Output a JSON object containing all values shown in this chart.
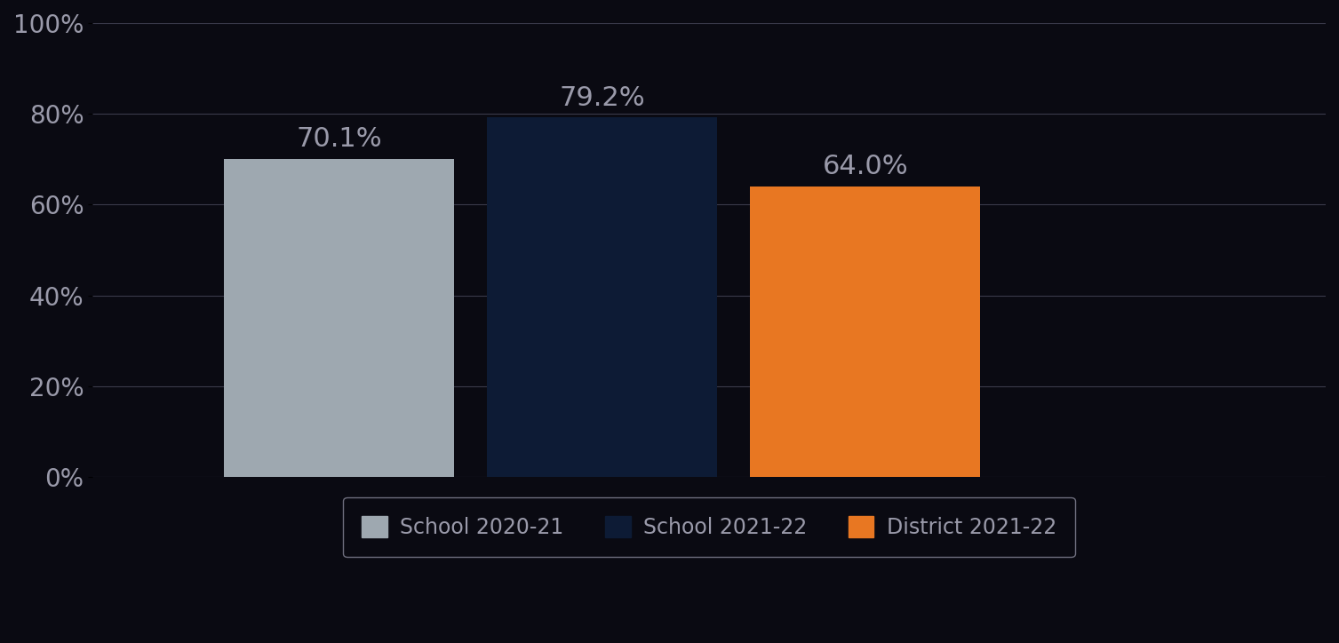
{
  "categories": [
    "School 2020-21",
    "School 2021-22",
    "District 2021-22"
  ],
  "values": [
    70.1,
    79.2,
    64.0
  ],
  "bar_colors": [
    "#9ea8b0",
    "#0d1b35",
    "#e87722"
  ],
  "ylim": [
    0,
    100
  ],
  "yticks": [
    0,
    20,
    40,
    60,
    80,
    100
  ],
  "ytick_labels": [
    "0%",
    "20%",
    "40%",
    "60%",
    "80%",
    "100%"
  ],
  "background_color": "#0a0a12",
  "grid_color": "#3a3a4a",
  "text_color": "#9a9aaa",
  "bar_label_fontsize": 22,
  "tick_fontsize": 20,
  "legend_fontsize": 17,
  "bar_width": 0.28,
  "bar_spacing": 0.3,
  "legend_edge_color": "#888899"
}
